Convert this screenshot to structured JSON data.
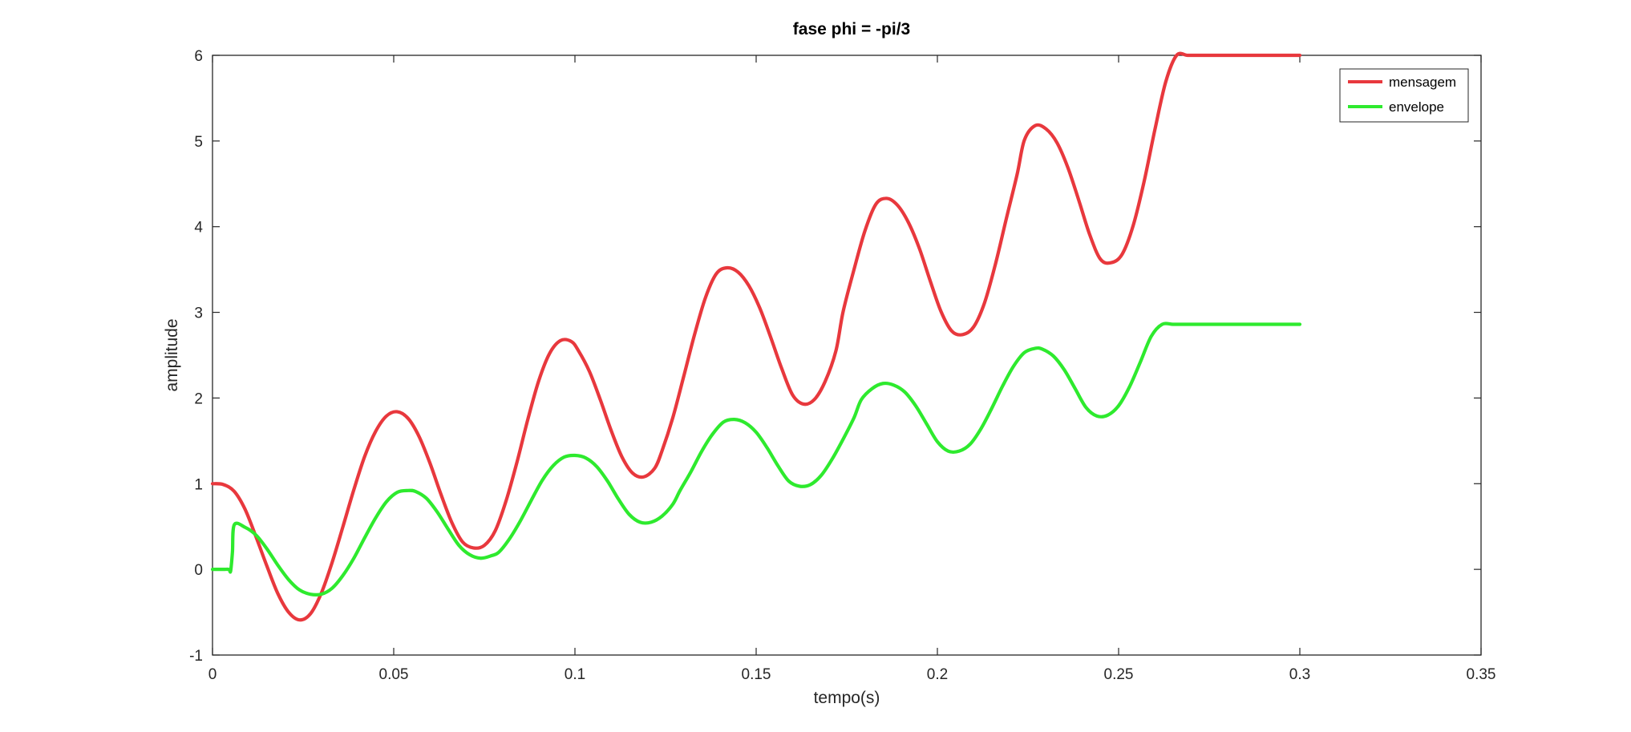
{
  "chart_data": {
    "type": "line",
    "title": "fase phi = -pi/3",
    "xlabel": "tempo(s)",
    "ylabel": "amplitude",
    "xlim": [
      0,
      0.35
    ],
    "ylim": [
      -1,
      6
    ],
    "xticks": [
      0,
      0.05,
      0.1,
      0.15,
      0.2,
      0.25,
      0.3,
      0.35
    ],
    "xtick_labels": [
      "0",
      "0.05",
      "0.1",
      "0.15",
      "0.2",
      "0.25",
      "0.3",
      "0.35"
    ],
    "yticks": [
      -1,
      0,
      1,
      2,
      3,
      4,
      5,
      6
    ],
    "ytick_labels": [
      "-1",
      "0",
      "1",
      "2",
      "3",
      "4",
      "5",
      "6"
    ],
    "grid": false,
    "legend_position": "top-right",
    "series": [
      {
        "name": "mensagem",
        "color": "#e8383d",
        "x": [
          0,
          0.003,
          0.006,
          0.009,
          0.012,
          0.015,
          0.018,
          0.021,
          0.024,
          0.027,
          0.03,
          0.033,
          0.036,
          0.039,
          0.042,
          0.045,
          0.048,
          0.051,
          0.054,
          0.057,
          0.06,
          0.063,
          0.066,
          0.069,
          0.072,
          0.075,
          0.078,
          0.081,
          0.084,
          0.087,
          0.09,
          0.093,
          0.096,
          0.099,
          0.101,
          0.104,
          0.107,
          0.11,
          0.113,
          0.116,
          0.119,
          0.122,
          0.124,
          0.127,
          0.13,
          0.133,
          0.136,
          0.139,
          0.142,
          0.145,
          0.148,
          0.151,
          0.154,
          0.157,
          0.16,
          0.163,
          0.166,
          0.169,
          0.172,
          0.174,
          0.177,
          0.18,
          0.183,
          0.186,
          0.189,
          0.192,
          0.195,
          0.198,
          0.201,
          0.204,
          0.207,
          0.21,
          0.213,
          0.216,
          0.219,
          0.222,
          0.224,
          0.227,
          0.23,
          0.233,
          0.236,
          0.239,
          0.242,
          0.245,
          0.248,
          0.251,
          0.254,
          0.257,
          0.26,
          0.263,
          0.266,
          0.269,
          0.272,
          0.274,
          0.277,
          0.28,
          0.283,
          0.286,
          0.289,
          0.292,
          0.295,
          0.298,
          0.3
        ],
        "y": [
          1.0,
          0.99,
          0.91,
          0.7,
          0.38,
          0.04,
          -0.28,
          -0.5,
          -0.59,
          -0.52,
          -0.28,
          0.08,
          0.5,
          0.93,
          1.32,
          1.61,
          1.79,
          1.84,
          1.76,
          1.55,
          1.24,
          0.88,
          0.55,
          0.32,
          0.25,
          0.28,
          0.45,
          0.8,
          1.25,
          1.75,
          2.2,
          2.52,
          2.67,
          2.66,
          2.55,
          2.31,
          1.98,
          1.62,
          1.31,
          1.12,
          1.08,
          1.18,
          1.38,
          1.77,
          2.25,
          2.74,
          3.17,
          3.45,
          3.52,
          3.47,
          3.31,
          3.05,
          2.71,
          2.35,
          2.04,
          1.93,
          1.98,
          2.19,
          2.55,
          3.01,
          3.5,
          3.95,
          4.26,
          4.33,
          4.25,
          4.05,
          3.75,
          3.37,
          3.01,
          2.78,
          2.74,
          2.83,
          3.11,
          3.56,
          4.09,
          4.61,
          5.01,
          5.18,
          5.14,
          4.98,
          4.69,
          4.31,
          3.91,
          3.62,
          3.58,
          3.68,
          4.01,
          4.52,
          5.13,
          5.69,
          6.0,
          6.0,
          6.0,
          6.0,
          6.0,
          6.0,
          6.0,
          6.0,
          6.0,
          6.0,
          6.0,
          6.0,
          6.0
        ]
      },
      {
        "name": "envelope",
        "color": "#2eea2e",
        "x": [
          0,
          0.003,
          0.0045,
          0.005,
          0.0055,
          0.006,
          0.009,
          0.012,
          0.015,
          0.018,
          0.021,
          0.024,
          0.027,
          0.03,
          0.033,
          0.036,
          0.039,
          0.042,
          0.045,
          0.048,
          0.051,
          0.054,
          0.056,
          0.059,
          0.062,
          0.065,
          0.068,
          0.071,
          0.074,
          0.077,
          0.079,
          0.082,
          0.085,
          0.088,
          0.091,
          0.094,
          0.097,
          0.1,
          0.103,
          0.106,
          0.109,
          0.112,
          0.115,
          0.118,
          0.121,
          0.124,
          0.127,
          0.129,
          0.132,
          0.135,
          0.138,
          0.141,
          0.144,
          0.147,
          0.15,
          0.153,
          0.156,
          0.159,
          0.162,
          0.165,
          0.168,
          0.171,
          0.174,
          0.177,
          0.179,
          0.182,
          0.185,
          0.188,
          0.191,
          0.194,
          0.197,
          0.2,
          0.203,
          0.206,
          0.209,
          0.212,
          0.215,
          0.218,
          0.221,
          0.224,
          0.227,
          0.229,
          0.232,
          0.235,
          0.238,
          0.241,
          0.244,
          0.247,
          0.25,
          0.253,
          0.256,
          0.259,
          0.262,
          0.265,
          0.268,
          0.271,
          0.274,
          0.277,
          0.279,
          0.282,
          0.285,
          0.288,
          0.291,
          0.294,
          0.297,
          0.3
        ],
        "y": [
          0,
          0,
          0,
          -0.02,
          0.2,
          0.52,
          0.49,
          0.4,
          0.24,
          0.05,
          -0.12,
          -0.24,
          -0.29,
          -0.29,
          -0.22,
          -0.07,
          0.13,
          0.37,
          0.6,
          0.79,
          0.9,
          0.92,
          0.91,
          0.83,
          0.67,
          0.47,
          0.28,
          0.17,
          0.13,
          0.16,
          0.2,
          0.36,
          0.57,
          0.81,
          1.04,
          1.21,
          1.31,
          1.33,
          1.3,
          1.2,
          1.03,
          0.82,
          0.64,
          0.55,
          0.55,
          0.62,
          0.76,
          0.92,
          1.14,
          1.38,
          1.58,
          1.72,
          1.75,
          1.71,
          1.6,
          1.42,
          1.21,
          1.03,
          0.97,
          0.99,
          1.1,
          1.29,
          1.52,
          1.77,
          1.98,
          2.11,
          2.17,
          2.15,
          2.07,
          1.91,
          1.7,
          1.49,
          1.38,
          1.38,
          1.46,
          1.64,
          1.88,
          2.14,
          2.37,
          2.53,
          2.58,
          2.57,
          2.49,
          2.33,
          2.11,
          1.89,
          1.79,
          1.8,
          1.91,
          2.13,
          2.42,
          2.72,
          2.86,
          2.86,
          2.86,
          2.86,
          2.86,
          2.86,
          2.86,
          2.86,
          2.86,
          2.86,
          2.86,
          2.86,
          2.86,
          2.86
        ]
      }
    ]
  }
}
